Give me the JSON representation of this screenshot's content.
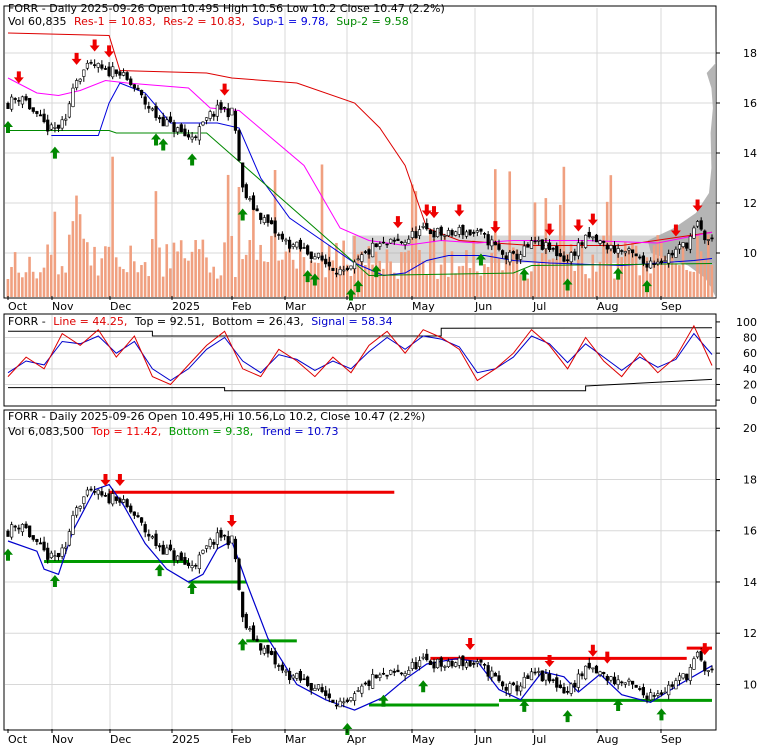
{
  "colors": {
    "background": "#ffffff",
    "gridline": "#d8d8d8",
    "candle": "#000000",
    "volume_bar": "#f0a080",
    "volume_profile": "#a8a8a8",
    "resistance_1": "#ff00ff",
    "resistance_2": "#dd0000",
    "support_1": "#0000dd",
    "support_2": "#008800",
    "arrow_up": "#008800",
    "arrow_down": "#ee0000",
    "stoch_line": "#dd0000",
    "stoch_signal": "#0000cc",
    "trend_line": "#0000cc",
    "top_line": "#ee0000",
    "bottom_line": "#009900"
  },
  "panel1": {
    "header": {
      "title": "FORR - Daily 2025-09-26 Open 10.495  High 10.56  Low 10.2  Close 10.47 (2.2%)",
      "vol": "Vol 60,835",
      "res1": "Res-1 = 10.83,",
      "res2": "Res-2 = 10.83,",
      "sup1": "Sup-1 = 9.78,",
      "sup2": "Sup-2 = 9.58"
    }
  },
  "panel2": {
    "header": {
      "name": "FORR -",
      "line": "Line = 44.25,",
      "top": "Top = 92.51,",
      "bottom": "Bottom = 26.43,",
      "signal": "Signal = 58.34"
    }
  },
  "panel3": {
    "header": {
      "title": "FORR - Daily 2025-09-26 Open 10.495,Hi 10.56,Lo 10.2, Close 10.47 (2.2%)",
      "vol": "Vol 6,083,500",
      "top": "Top = 11.42,",
      "bottom": "Bottom = 9.38,",
      "trend": "Trend = 10.73"
    }
  },
  "chart_data": [
    {
      "type": "candlestick",
      "title": "FORR - Daily 2025-09-26",
      "x_tick_labels": [
        "Oct",
        "Nov",
        "Dec",
        "2025",
        "Feb",
        "Mar",
        "Apr",
        "May",
        "Jun",
        "Jul",
        "Aug",
        "Sep"
      ],
      "y_tick_labels": [
        "18",
        "16",
        "14",
        "12",
        "10"
      ],
      "y_ticks": [
        18,
        16,
        14,
        12,
        10
      ],
      "ylim": [
        8.2,
        19.4
      ],
      "close_path": [
        [
          0,
          16.0
        ],
        [
          4,
          16.3
        ],
        [
          8,
          15.4
        ],
        [
          12,
          14.9
        ],
        [
          16,
          15.2
        ],
        [
          18,
          16.8
        ],
        [
          21,
          17.3
        ],
        [
          24,
          17.5
        ],
        [
          27,
          17.2
        ],
        [
          30,
          17.4
        ],
        [
          32,
          17.0
        ],
        [
          35,
          16.6
        ],
        [
          38,
          16.0
        ],
        [
          41,
          15.5
        ],
        [
          44,
          15.2
        ],
        [
          47,
          14.9
        ],
        [
          50,
          14.6
        ],
        [
          53,
          14.9
        ],
        [
          56,
          15.5
        ],
        [
          59,
          15.8
        ],
        [
          62,
          15.6
        ],
        [
          63,
          14.9
        ],
        [
          65,
          12.5
        ],
        [
          67,
          12.0
        ],
        [
          70,
          11.5
        ],
        [
          73,
          11.0
        ],
        [
          76,
          10.5
        ],
        [
          79,
          10.3
        ],
        [
          82,
          10.1
        ],
        [
          85,
          9.9
        ],
        [
          88,
          9.6
        ],
        [
          91,
          9.4
        ],
        [
          93,
          9.1
        ],
        [
          95,
          9.3
        ],
        [
          98,
          9.8
        ],
        [
          101,
          10.2
        ],
        [
          104,
          10.3
        ],
        [
          107,
          10.4
        ],
        [
          110,
          10.5
        ],
        [
          113,
          10.8
        ],
        [
          116,
          10.9
        ],
        [
          119,
          10.8
        ],
        [
          122,
          10.7
        ],
        [
          125,
          10.9
        ],
        [
          128,
          10.8
        ],
        [
          131,
          10.7
        ],
        [
          134,
          10.4
        ],
        [
          137,
          9.9
        ],
        [
          140,
          9.8
        ],
        [
          143,
          10.1
        ],
        [
          146,
          10.4
        ],
        [
          149,
          10.2
        ],
        [
          152,
          10.0
        ],
        [
          155,
          9.7
        ],
        [
          158,
          10.3
        ],
        [
          161,
          10.6
        ],
        [
          164,
          10.4
        ],
        [
          167,
          10.2
        ],
        [
          170,
          10.1
        ],
        [
          173,
          9.9
        ],
        [
          176,
          9.6
        ],
        [
          179,
          9.7
        ],
        [
          182,
          9.8
        ],
        [
          185,
          10.1
        ],
        [
          188,
          10.4
        ],
        [
          191,
          11.1
        ],
        [
          193,
          10.6
        ],
        [
          195,
          10.47
        ]
      ],
      "resistance_2_path": [
        [
          0,
          18.8
        ],
        [
          28,
          18.7
        ],
        [
          31,
          17.3
        ],
        [
          55,
          17.2
        ],
        [
          62,
          17.0
        ],
        [
          80,
          16.8
        ],
        [
          96,
          16.0
        ],
        [
          103,
          15.0
        ],
        [
          110,
          13.5
        ],
        [
          116,
          11.0
        ],
        [
          125,
          10.5
        ],
        [
          145,
          10.3
        ],
        [
          170,
          10.3
        ],
        [
          195,
          10.83
        ]
      ],
      "resistance_1_path": [
        [
          0,
          17.0
        ],
        [
          8,
          16.4
        ],
        [
          14,
          16.3
        ],
        [
          20,
          16.5
        ],
        [
          27,
          16.9
        ],
        [
          33,
          16.8
        ],
        [
          50,
          16.6
        ],
        [
          56,
          15.8
        ],
        [
          64,
          15.7
        ],
        [
          73,
          14.6
        ],
        [
          82,
          13.5
        ],
        [
          92,
          11.0
        ],
        [
          100,
          10.5
        ],
        [
          110,
          10.3
        ],
        [
          120,
          10.5
        ],
        [
          130,
          10.4
        ],
        [
          140,
          10.5
        ],
        [
          160,
          10.5
        ],
        [
          180,
          10.4
        ],
        [
          195,
          10.83
        ]
      ],
      "support_1_path": [
        [
          12,
          14.7
        ],
        [
          25,
          14.7
        ],
        [
          28,
          16.0
        ],
        [
          31,
          16.8
        ],
        [
          38,
          16.4
        ],
        [
          45,
          15.2
        ],
        [
          58,
          15.2
        ],
        [
          64,
          15.0
        ],
        [
          70,
          13.0
        ],
        [
          78,
          11.4
        ],
        [
          88,
          10.4
        ],
        [
          96,
          9.6
        ],
        [
          104,
          9.1
        ],
        [
          110,
          9.2
        ],
        [
          116,
          9.7
        ],
        [
          122,
          9.9
        ],
        [
          132,
          9.9
        ],
        [
          140,
          9.7
        ],
        [
          150,
          9.6
        ],
        [
          170,
          9.5
        ],
        [
          190,
          9.7
        ],
        [
          195,
          9.78
        ]
      ],
      "support_2_path": [
        [
          0,
          14.9
        ],
        [
          12,
          14.9
        ],
        [
          28,
          14.9
        ],
        [
          30,
          14.8
        ],
        [
          55,
          14.8
        ],
        [
          100,
          9.1
        ],
        [
          140,
          9.2
        ],
        [
          145,
          9.5
        ],
        [
          195,
          9.58
        ]
      ],
      "buy_arrow_days": [
        0,
        13,
        41,
        43,
        51,
        65,
        83,
        85,
        95,
        97,
        102,
        131,
        143,
        155,
        169,
        177
      ],
      "sell_arrow_days": [
        3,
        19,
        24,
        28,
        60,
        108,
        116,
        118,
        125,
        135,
        150,
        158,
        162,
        185,
        191
      ],
      "volume_level_labels": []
    },
    {
      "type": "line",
      "title": "FORR - Line / Signal",
      "x_tick_labels": [
        "Oct",
        "Nov",
        "Dec",
        "2025",
        "Feb",
        "Mar",
        "Apr",
        "May",
        "Jun",
        "Jul",
        "Aug",
        "Sep"
      ],
      "y_tick_labels": [
        "100",
        "80",
        "60",
        "40",
        "20",
        "0"
      ],
      "y_ticks": [
        100,
        80,
        60,
        40,
        20,
        0
      ],
      "ylim": [
        -5,
        105
      ],
      "series": [
        {
          "name": "Line",
          "points": [
            [
              0,
              30
            ],
            [
              5,
              55
            ],
            [
              10,
              40
            ],
            [
              15,
              85
            ],
            [
              20,
              70
            ],
            [
              25,
              90
            ],
            [
              30,
              55
            ],
            [
              35,
              82
            ],
            [
              40,
              30
            ],
            [
              45,
              20
            ],
            [
              50,
              45
            ],
            [
              55,
              70
            ],
            [
              60,
              88
            ],
            [
              65,
              40
            ],
            [
              70,
              30
            ],
            [
              75,
              65
            ],
            [
              80,
              50
            ],
            [
              85,
              30
            ],
            [
              90,
              55
            ],
            [
              95,
              35
            ],
            [
              100,
              70
            ],
            [
              105,
              88
            ],
            [
              110,
              60
            ],
            [
              115,
              90
            ],
            [
              120,
              80
            ],
            [
              125,
              65
            ],
            [
              130,
              25
            ],
            [
              135,
              40
            ],
            [
              140,
              60
            ],
            [
              145,
              90
            ],
            [
              150,
              70
            ],
            [
              155,
              40
            ],
            [
              160,
              80
            ],
            [
              165,
              50
            ],
            [
              170,
              30
            ],
            [
              175,
              60
            ],
            [
              180,
              35
            ],
            [
              185,
              55
            ],
            [
              190,
              95
            ],
            [
              195,
              44.25
            ]
          ]
        },
        {
          "name": "Signal",
          "points": [
            [
              0,
              35
            ],
            [
              5,
              50
            ],
            [
              10,
              45
            ],
            [
              15,
              75
            ],
            [
              20,
              72
            ],
            [
              25,
              82
            ],
            [
              30,
              60
            ],
            [
              35,
              75
            ],
            [
              40,
              40
            ],
            [
              45,
              25
            ],
            [
              50,
              40
            ],
            [
              55,
              65
            ],
            [
              60,
              80
            ],
            [
              65,
              50
            ],
            [
              70,
              35
            ],
            [
              75,
              58
            ],
            [
              80,
              52
            ],
            [
              85,
              38
            ],
            [
              90,
              50
            ],
            [
              95,
              40
            ],
            [
              100,
              62
            ],
            [
              105,
              80
            ],
            [
              110,
              65
            ],
            [
              115,
              82
            ],
            [
              120,
              78
            ],
            [
              125,
              68
            ],
            [
              130,
              35
            ],
            [
              135,
              40
            ],
            [
              140,
              55
            ],
            [
              145,
              82
            ],
            [
              150,
              72
            ],
            [
              155,
              48
            ],
            [
              160,
              72
            ],
            [
              165,
              55
            ],
            [
              170,
              38
            ],
            [
              175,
              55
            ],
            [
              180,
              42
            ],
            [
              185,
              52
            ],
            [
              190,
              85
            ],
            [
              195,
              58.34
            ]
          ]
        }
      ],
      "top_value": 92.51,
      "bottom_value": 26.43
    },
    {
      "type": "candlestick",
      "title": "FORR - Daily 2025-09-26 (trend)",
      "x_tick_labels": [
        "Oct",
        "Nov",
        "Dec",
        "2025",
        "Feb",
        "Mar",
        "Apr",
        "May",
        "Jun",
        "Jul",
        "Aug",
        "Sep"
      ],
      "y_tick_labels": [
        "20",
        "18",
        "16",
        "14",
        "12",
        "10"
      ],
      "y_ticks": [
        20,
        18,
        16,
        14,
        12,
        10
      ],
      "ylim": [
        8.3,
        20.4
      ],
      "trend_path": [
        [
          0,
          15.6
        ],
        [
          8,
          15.2
        ],
        [
          10,
          14.5
        ],
        [
          14,
          14.3
        ],
        [
          18,
          16.0
        ],
        [
          24,
          17.6
        ],
        [
          28,
          17.8
        ],
        [
          32,
          17.0
        ],
        [
          38,
          15.5
        ],
        [
          44,
          14.5
        ],
        [
          50,
          14.0
        ],
        [
          54,
          14.3
        ],
        [
          58,
          15.3
        ],
        [
          62,
          15.6
        ],
        [
          66,
          14.0
        ],
        [
          72,
          11.8
        ],
        [
          80,
          10.0
        ],
        [
          88,
          9.4
        ],
        [
          96,
          9.0
        ],
        [
          104,
          9.5
        ],
        [
          110,
          10.2
        ],
        [
          116,
          10.8
        ],
        [
          124,
          11.0
        ],
        [
          130,
          10.9
        ],
        [
          136,
          9.8
        ],
        [
          142,
          9.4
        ],
        [
          148,
          10.5
        ],
        [
          154,
          10.3
        ],
        [
          158,
          9.7
        ],
        [
          164,
          10.4
        ],
        [
          170,
          9.6
        ],
        [
          178,
          9.3
        ],
        [
          186,
          10.0
        ],
        [
          195,
          10.73
        ]
      ],
      "top_levels": [
        {
          "from": 28,
          "to": 107,
          "value": 17.5
        },
        {
          "from": 117,
          "to": 188,
          "value": 11.02
        },
        {
          "from": 188,
          "to": 195,
          "value": 11.42
        }
      ],
      "bottom_levels": [
        {
          "from": 10,
          "to": 50,
          "value": 14.8
        },
        {
          "from": 50,
          "to": 66,
          "value": 14.0
        },
        {
          "from": 66,
          "to": 80,
          "value": 11.7
        },
        {
          "from": 100,
          "to": 136,
          "value": 9.2
        },
        {
          "from": 136,
          "to": 195,
          "value": 9.38
        }
      ],
      "buy_arrow_days": [
        0,
        13,
        42,
        51,
        65,
        94,
        104,
        115,
        143,
        155,
        169,
        181
      ],
      "sell_arrow_days": [
        27,
        31,
        62,
        128,
        150,
        162,
        166,
        193
      ]
    }
  ]
}
